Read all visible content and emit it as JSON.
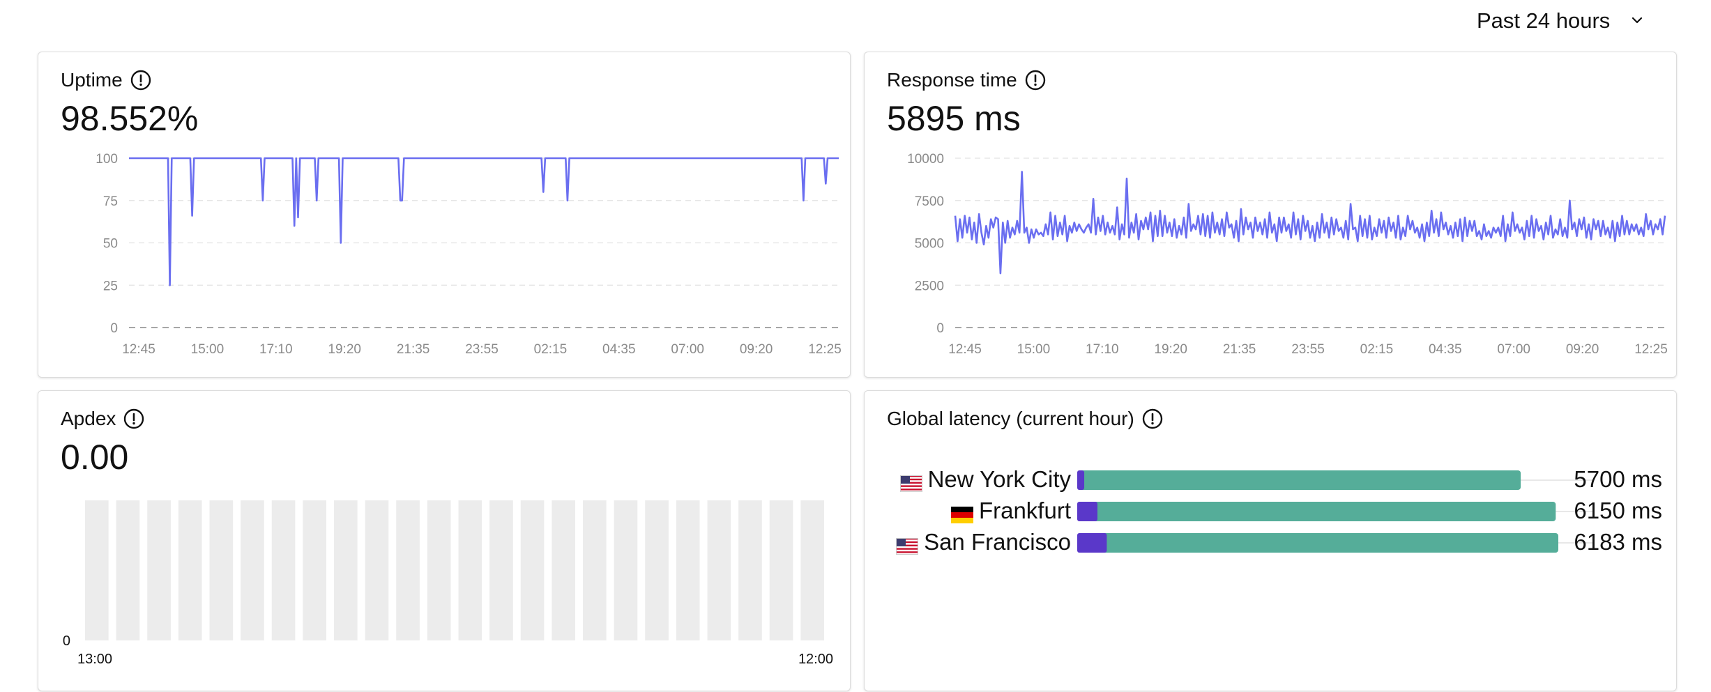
{
  "time_range": {
    "label": "Past 24 hours",
    "icon": "chevron-down-icon"
  },
  "colors": {
    "line": "#6a6ef0",
    "bar_bg": "#ececec",
    "latency_dns": "#5a38c9",
    "latency_body": "#55ad99"
  },
  "uptime": {
    "title": "Uptime",
    "value": "98.552%",
    "chart_data": {
      "type": "line",
      "ylim": [
        0,
        100
      ],
      "y_ticks": [
        "100",
        "75",
        "50",
        "25",
        "0"
      ],
      "x_ticks": [
        "12:45",
        "15:00",
        "17:10",
        "19:20",
        "21:35",
        "23:55",
        "02:15",
        "04:35",
        "07:00",
        "09:20",
        "12:25"
      ],
      "series": [
        {
          "values": [
            100,
            100,
            100,
            100,
            100,
            100,
            100,
            100,
            100,
            100,
            100,
            100,
            100,
            100,
            100,
            100,
            100,
            100,
            100,
            100,
            100,
            100,
            25,
            100,
            100,
            100,
            100,
            100,
            100,
            100,
            100,
            100,
            100,
            100,
            66,
            100,
            100,
            100,
            100,
            100,
            100,
            100,
            100,
            100,
            100,
            100,
            100,
            100,
            100,
            100,
            100,
            100,
            100,
            100,
            100,
            100,
            100,
            100,
            100,
            100,
            100,
            100,
            100,
            100,
            100,
            100,
            100,
            100,
            100,
            100,
            100,
            100,
            75,
            100,
            100,
            100,
            100,
            100,
            100,
            100,
            100,
            100,
            100,
            100,
            100,
            100,
            100,
            100,
            100,
            60,
            100,
            65,
            100,
            100,
            100,
            100,
            100,
            100,
            100,
            100,
            100,
            75,
            100,
            100,
            100,
            100,
            100,
            100,
            100,
            100,
            100,
            100,
            100,
            100,
            50,
            100,
            100,
            100,
            100,
            100,
            100,
            100,
            100,
            100,
            100,
            100,
            100,
            100,
            100,
            100,
            100,
            100,
            100,
            100,
            100,
            100,
            100,
            100,
            100,
            100,
            100,
            100,
            100,
            100,
            100,
            100,
            75,
            75,
            100,
            100,
            100,
            100,
            100,
            100,
            100,
            100,
            100,
            100,
            100,
            100,
            100,
            100,
            100,
            100,
            100,
            100,
            100,
            100,
            100,
            100,
            100,
            100,
            100,
            100,
            100,
            100,
            100,
            100,
            100,
            100,
            100,
            100,
            100,
            100,
            100,
            100,
            100,
            100,
            100,
            100,
            100,
            100,
            100,
            100,
            100,
            100,
            100,
            100,
            100,
            100,
            100,
            100,
            100,
            100,
            100,
            100,
            100,
            100,
            100,
            100,
            100,
            100,
            100,
            100,
            100,
            100,
            100,
            100,
            100,
            100,
            100,
            100,
            100,
            80,
            100,
            100,
            100,
            100,
            100,
            100,
            100,
            100,
            100,
            100,
            100,
            100,
            75,
            100,
            100,
            100,
            100,
            100,
            100,
            100,
            100,
            100,
            100,
            100,
            100,
            100,
            100,
            100,
            100,
            100,
            100,
            100,
            100,
            100,
            100,
            100,
            100,
            100,
            100,
            100,
            100,
            100,
            100,
            100,
            100,
            100,
            100,
            100,
            100,
            100,
            100,
            100,
            100,
            100,
            100,
            100,
            100,
            100,
            100,
            100,
            100,
            100,
            100,
            100,
            100,
            100,
            100,
            100,
            100,
            100,
            100,
            100,
            100,
            100,
            100,
            100,
            100,
            100,
            100,
            100,
            100,
            100,
            100,
            100,
            100,
            100,
            100,
            100,
            100,
            100,
            100,
            100,
            100,
            100,
            100,
            100,
            100,
            100,
            100,
            100,
            100,
            100,
            100,
            100,
            100,
            100,
            100,
            100,
            100,
            100,
            100,
            100,
            100,
            100,
            100,
            100,
            100,
            100,
            100,
            100,
            100,
            100,
            100,
            100,
            100,
            100,
            100,
            100,
            100,
            100,
            100,
            100,
            100,
            100,
            100,
            100,
            100,
            100,
            100,
            75,
            100,
            100,
            100,
            100,
            100,
            100,
            100,
            100,
            100,
            100,
            100,
            85,
            100,
            100,
            100,
            100,
            100,
            100,
            100
          ]
        }
      ]
    }
  },
  "response_time": {
    "title": "Response time",
    "value": "5895 ms",
    "chart_data": {
      "type": "line",
      "ylim": [
        0,
        10000
      ],
      "y_ticks": [
        "10000",
        "7500",
        "5000",
        "2500",
        "0"
      ],
      "x_ticks": [
        "12:45",
        "15:00",
        "17:10",
        "19:20",
        "21:35",
        "23:55",
        "02:15",
        "04:35",
        "07:00",
        "09:20",
        "12:25"
      ],
      "series": [
        {
          "values": [
            6600,
            5100,
            6400,
            5300,
            6600,
            5600,
            6500,
            5200,
            6200,
            5000,
            6700,
            5600,
            4900,
            6000,
            5300,
            6400,
            5900,
            6500,
            6400,
            3200,
            6200,
            5000,
            6300,
            5300,
            5900,
            5500,
            6300,
            5600,
            9200,
            5600,
            5900,
            5000,
            5800,
            5300,
            5800,
            5500,
            5600,
            5400,
            6100,
            5500,
            6800,
            5200,
            6600,
            5400,
            6200,
            5500,
            6600,
            5100,
            6000,
            5600,
            6200,
            5700,
            6100,
            5800,
            5600,
            5900,
            6100,
            5600,
            7600,
            5500,
            6500,
            5700,
            6600,
            5500,
            6200,
            5600,
            6000,
            5500,
            7100,
            5200,
            6100,
            5500,
            8800,
            5300,
            6200,
            5600,
            6700,
            5200,
            6300,
            5800,
            6500,
            5800,
            6800,
            5100,
            6600,
            5400,
            6900,
            5400,
            6600,
            5600,
            6200,
            5400,
            6400,
            5300,
            6000,
            5500,
            6500,
            5300,
            7300,
            5700,
            6100,
            5800,
            6600,
            5500,
            6700,
            5400,
            6600,
            5300,
            6800,
            5600,
            6200,
            5500,
            6400,
            5400,
            6800,
            5900,
            6100,
            5300,
            6300,
            5100,
            7000,
            5500,
            6500,
            5800,
            6200,
            5300,
            6500,
            5700,
            6200,
            5500,
            6400,
            5300,
            6800,
            5600,
            6100,
            5100,
            6500,
            5600,
            6500,
            5700,
            6100,
            5300,
            6800,
            5500,
            6400,
            5200,
            6600,
            5700,
            6300,
            5300,
            6000,
            5100,
            6200,
            5300,
            6700,
            5600,
            6200,
            5300,
            6500,
            5500,
            6400,
            5700,
            5900,
            5300,
            6300,
            5200,
            7300,
            5800,
            5900,
            5100,
            6600,
            5400,
            6400,
            5300,
            6600,
            5200,
            5900,
            5400,
            6400,
            5600,
            6300,
            5300,
            6500,
            5700,
            6200,
            5300,
            6600,
            5200,
            5900,
            5400,
            6600,
            5800,
            6300,
            5600,
            5900,
            5300,
            6100,
            5100,
            6200,
            5400,
            6900,
            5600,
            6400,
            5400,
            6800,
            5800,
            6200,
            5500,
            6000,
            5300,
            6200,
            5400,
            6400,
            5100,
            6500,
            5400,
            6300,
            5700,
            6300,
            5400,
            5700,
            5200,
            6100,
            5400,
            5700,
            5300,
            5900,
            5600,
            5900,
            5400,
            6600,
            5100,
            6100,
            5400,
            6800,
            5700,
            6100,
            5600,
            5900,
            5200,
            6300,
            5400,
            6600,
            5300,
            6400,
            5700,
            6000,
            5200,
            6200,
            5500,
            6600,
            5300,
            5800,
            5500,
            6400,
            5400,
            5900,
            5300,
            7500,
            5800,
            6200,
            5400,
            6400,
            5800,
            6500,
            5300,
            6100,
            5200,
            6400,
            5800,
            6300,
            5400,
            6300,
            5500,
            5900,
            5300,
            6300,
            5100,
            6200,
            5400,
            6600,
            5500,
            6300,
            5500,
            6100,
            5700,
            6100,
            5500,
            5900,
            5400,
            6700,
            5800,
            6300,
            5500,
            6100,
            5800,
            6400,
            5500,
            6600
          ]
        }
      ]
    }
  },
  "apdex": {
    "title": "Apdex",
    "value": "0.00",
    "chart_data": {
      "type": "bar",
      "y_ticks": [
        "0"
      ],
      "x_ticks": [
        "13:00",
        "12:00"
      ],
      "bar_count": 24
    }
  },
  "latency": {
    "title": "Global latency (current hour)",
    "chart_data": {
      "type": "bar",
      "max_ms": 6183,
      "rows": [
        {
          "city": "New York City",
          "flag": "us-flag-icon",
          "value": "5700 ms",
          "dns_ms": 90,
          "total_ms": 5700
        },
        {
          "city": "Frankfurt",
          "flag": "de-flag-icon",
          "value": "6150 ms",
          "dns_ms": 260,
          "total_ms": 6150
        },
        {
          "city": "San Francisco",
          "flag": "us-flag-icon",
          "value": "6183 ms",
          "dns_ms": 380,
          "total_ms": 6183
        }
      ]
    }
  }
}
